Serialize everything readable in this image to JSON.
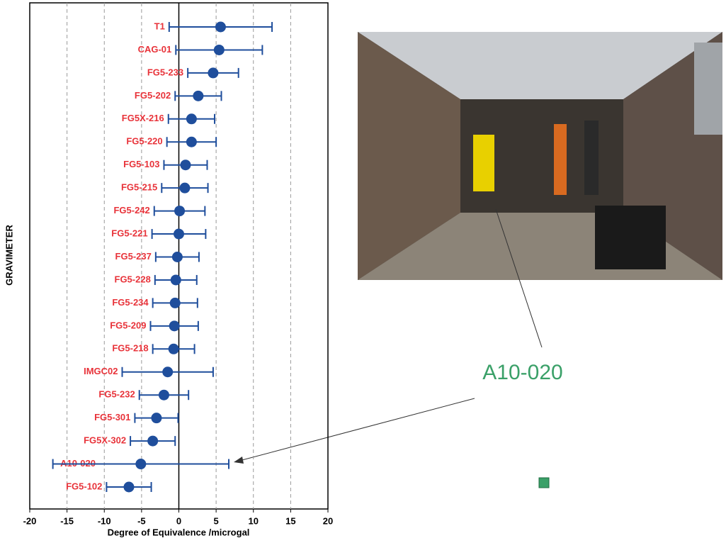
{
  "chart_data": {
    "type": "errorbar",
    "y_label": "GRAVIMETER",
    "x_label": "Degree of Equivalence /microgal",
    "categories": [
      "T1",
      "CAG-01",
      "FG5-233",
      "FG5-202",
      "FG5X-216",
      "FG5-220",
      "FG5-103",
      "FG5-215",
      "FG5-242",
      "FG5-221",
      "FG5-237",
      "FG5-228",
      "FG5-234",
      "FG5-209",
      "FG5-218",
      "IMGC02",
      "FG5-232",
      "FG5-301",
      "FG5X-302",
      "A10-020",
      "FG5-102"
    ],
    "values": [
      5.6,
      5.4,
      4.6,
      2.6,
      1.7,
      1.7,
      0.9,
      0.8,
      0.1,
      0.0,
      -0.2,
      -0.4,
      -0.5,
      -0.6,
      -0.7,
      -1.5,
      -2.0,
      -3.0,
      -3.5,
      -5.1,
      -6.7
    ],
    "errors": [
      6.9,
      5.8,
      3.4,
      3.1,
      3.1,
      3.3,
      2.9,
      3.1,
      3.4,
      3.6,
      2.9,
      2.8,
      3.0,
      3.2,
      2.8,
      6.1,
      3.3,
      2.9,
      3.0,
      11.8,
      3.0
    ],
    "color": "#1f4e9c",
    "label_color": "#e8333a",
    "xlim": [
      -20,
      20
    ],
    "xticks": [
      -20,
      -15,
      -10,
      -5,
      0,
      5,
      10,
      15,
      20
    ],
    "grid": true,
    "annotation": "A10-020",
    "annotation_color": "#3aa068"
  }
}
